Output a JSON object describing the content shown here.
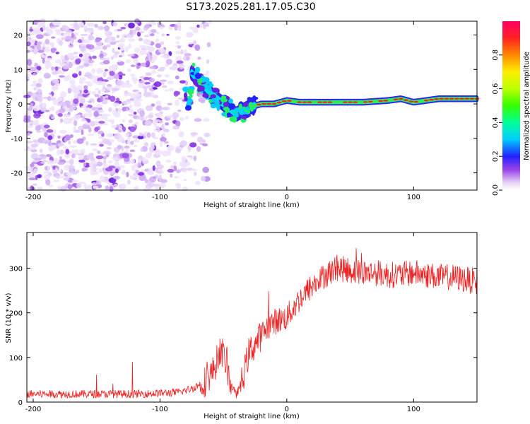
{
  "title": "S173.2025.281.17.05.C30",
  "chart_data": [
    {
      "type": "heatmap",
      "name": "spectrogram",
      "xlabel": "Height of straight line (km)",
      "ylabel": "Frequency (Hz)",
      "xlim": [
        -205,
        150
      ],
      "ylim": [
        -25,
        24
      ],
      "xticks": [
        -200,
        -100,
        0,
        100
      ],
      "yticks": [
        -20,
        -10,
        0,
        10,
        20
      ],
      "colorbar": {
        "label": "Normalized spectral amplitude",
        "range": [
          0.0,
          1.0
        ],
        "ticks": [
          0.0,
          0.2,
          0.4,
          0.6,
          0.8
        ]
      },
      "description_points": {
        "noise_region_x": [
          -205,
          -70
        ],
        "signal_trace": {
          "x": [
            -75,
            -60,
            -50,
            -40,
            -30,
            -20,
            -10,
            0,
            10,
            20,
            40,
            60,
            80,
            90,
            100,
            120,
            150
          ],
          "freq": [
            9,
            3,
            0,
            -3,
            -1,
            0,
            0,
            1,
            0.5,
            0.5,
            0.5,
            0.5,
            1,
            1.5,
            0.5,
            1.5,
            1.5
          ]
        }
      }
    },
    {
      "type": "line",
      "name": "snr",
      "xlabel": "Height of straight line (km)",
      "ylabel": "SNR (10 * v/v)",
      "xlim": [
        -205,
        150
      ],
      "ylim": [
        0,
        380
      ],
      "xticks": [
        -200,
        -100,
        0,
        100
      ],
      "yticks": [
        0,
        100,
        200,
        300
      ],
      "series": [
        {
          "name": "SNR",
          "color": "#ee2222",
          "x": [
            -205,
            -180,
            -150,
            -120,
            -100,
            -85,
            -75,
            -65,
            -58,
            -52,
            -48,
            -44,
            -40,
            -35,
            -30,
            -25,
            -20,
            -15,
            -10,
            -5,
            0,
            5,
            10,
            15,
            20,
            25,
            30,
            40,
            50,
            60,
            70,
            80,
            90,
            100,
            110,
            120,
            130,
            140,
            150
          ],
          "y": [
            18,
            18,
            18,
            18,
            20,
            22,
            30,
            45,
            70,
            120,
            90,
            40,
            15,
            50,
            110,
            130,
            150,
            170,
            180,
            185,
            190,
            210,
            230,
            245,
            260,
            270,
            285,
            300,
            295,
            290,
            290,
            285,
            285,
            290,
            285,
            280,
            280,
            275,
            270
          ]
        }
      ]
    }
  ]
}
